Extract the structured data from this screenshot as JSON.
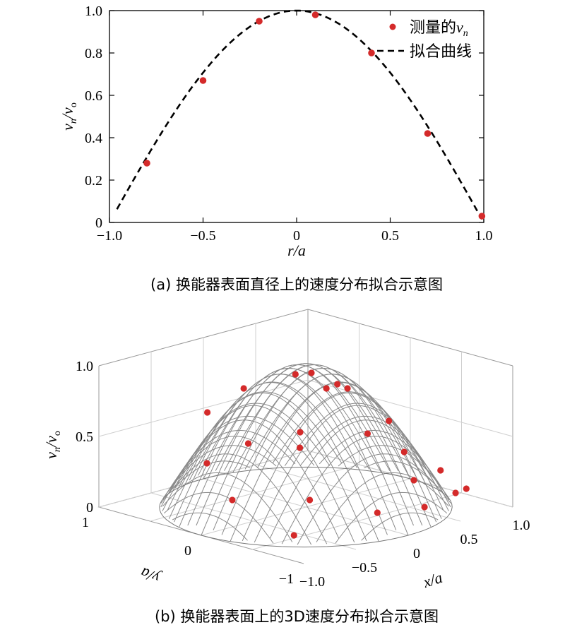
{
  "chart_data": [
    {
      "type": "line+scatter",
      "xlabel": "r/a",
      "ylabel_main": "v",
      "ylabel_sub1": "n",
      "ylabel_mid": "/v",
      "ylabel_sub2": "o",
      "xlim": [
        -1.0,
        1.0
      ],
      "ylim": [
        0,
        1.0
      ],
      "xticks": [
        "−1.0",
        "−0.5",
        "0",
        "0.5",
        "1.0"
      ],
      "yticks": [
        "0",
        "0.2",
        "0.4",
        "0.6",
        "0.8",
        "1.0"
      ],
      "legend": {
        "placement": "top-right",
        "measured_text": "测量的",
        "measured_var": "v",
        "measured_sub": "n",
        "fit_text": "拟合曲线"
      },
      "series": [
        {
          "name": "测量的vn",
          "kind": "scatter",
          "color": "#d42a2a",
          "points": [
            [
              -0.8,
              0.28
            ],
            [
              -0.5,
              0.67
            ],
            [
              -0.2,
              0.95
            ],
            [
              0.1,
              0.98
            ],
            [
              0.4,
              0.8
            ],
            [
              0.7,
              0.42
            ],
            [
              0.99,
              0.03
            ]
          ]
        },
        {
          "name": "拟合曲线",
          "kind": "line",
          "style": "dashed",
          "color": "#000000",
          "function": "cos(pi*(r - 0.0)/2)",
          "xrange": [
            -0.96,
            0.99
          ]
        }
      ],
      "caption": "(a) 换能器表面直径上的速度分布拟合示意图"
    },
    {
      "type": "surface3d+scatter",
      "xlabel": "x/a",
      "ylabel": "y/a",
      "zlabel_main": "v",
      "zlabel_sub1": "n",
      "zlabel_mid": "/v",
      "zlabel_sub2": "o",
      "xlim": [
        -1.0,
        1.0
      ],
      "ylim": [
        -1,
        1
      ],
      "zlim": [
        0,
        1.0
      ],
      "xticks": [
        "−1.0",
        "−0.5",
        "0",
        "0.5",
        "1.0"
      ],
      "yticks": [
        "−1",
        "0",
        "1"
      ],
      "zticks": [
        "0",
        "0.5",
        "1.0"
      ],
      "surface_color": "#8a8a8a",
      "points_color": "#d42a2a",
      "points": [
        [
          -0.05,
          0.05,
          0.94
        ],
        [
          -0.3,
          0.3,
          0.84
        ],
        [
          0.25,
          0.2,
          0.86
        ],
        [
          -0.55,
          0.4,
          0.7
        ],
        [
          0.05,
          -0.15,
          0.86
        ],
        [
          0.35,
          -0.05,
          0.78
        ],
        [
          0.4,
          0.1,
          0.77
        ],
        [
          -0.6,
          -0.05,
          0.58
        ],
        [
          -0.25,
          -0.2,
          0.62
        ],
        [
          0.15,
          -0.45,
          0.58
        ],
        [
          -0.4,
          -0.35,
          0.57
        ],
        [
          -0.75,
          0.2,
          0.42
        ],
        [
          0.55,
          -0.25,
          0.55
        ],
        [
          0.5,
          -0.45,
          0.38
        ],
        [
          -0.55,
          -0.6,
          0.28
        ],
        [
          -0.85,
          -0.15,
          0.25
        ],
        [
          0.75,
          -0.55,
          0.22
        ],
        [
          -0.75,
          -0.65,
          0.08
        ],
        [
          0.25,
          -0.8,
          0.3
        ],
        [
          0.6,
          -0.85,
          0.15
        ],
        [
          -0.05,
          -0.75,
          0.12
        ],
        [
          0.85,
          -0.7,
          0.1
        ],
        [
          0.45,
          -0.7,
          0.05
        ]
      ],
      "caption": "(b) 换能器表面上的3D速度分布拟合示意图"
    }
  ]
}
